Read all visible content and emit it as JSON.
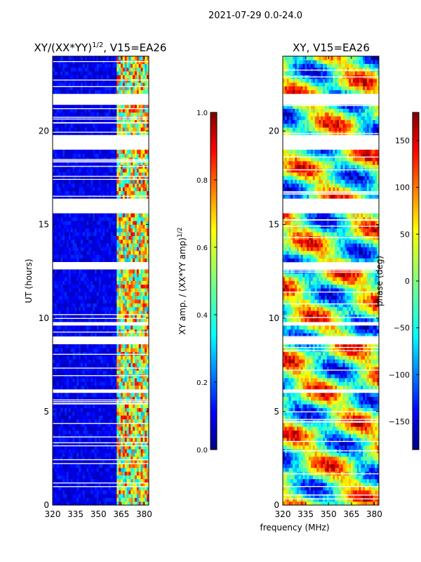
{
  "figure": {
    "suptitle": "2021-07-29 0.0-24.0",
    "xlabel": "frequency (MHz)"
  },
  "chart_data": [
    {
      "type": "heatmap",
      "title_prefix": "XY/(XX*YY)",
      "title_sup": "1/2",
      "title_suffix": ", V15=EA26",
      "xlabel": "frequency (MHz)",
      "ylabel": "UT (hours)",
      "xlim": [
        320,
        383
      ],
      "ylim": [
        0,
        24
      ],
      "xticks": [
        320,
        335,
        350,
        365,
        380
      ],
      "yticks": [
        0,
        5,
        10,
        15,
        20
      ],
      "colorbar": {
        "label_prefix": "XY amp. / (XX*YY amp)",
        "label_sup": "1/2",
        "range": [
          0.0,
          1.0
        ],
        "ticks": [
          "0.0",
          "0.2",
          "0.4",
          "0.6",
          "0.8",
          "1.0"
        ],
        "tick_values": [
          0.0,
          0.2,
          0.4,
          0.6,
          0.8,
          1.0
        ],
        "colormap": "jet"
      },
      "flagged_time_ranges_hours": [
        [
          21.3,
          22.0
        ],
        [
          19.0,
          19.8
        ],
        [
          15.6,
          16.3
        ],
        [
          12.6,
          12.9
        ],
        [
          9.6,
          9.7
        ],
        [
          8.6,
          8.9
        ],
        [
          5.9,
          6.1
        ]
      ],
      "description": "mostly low values (~0.1) below 362 MHz, high values 0.4-0.9 in 362-382 MHz band"
    },
    {
      "type": "heatmap",
      "title": "XY, V15=EA26",
      "xlabel": "frequency (MHz)",
      "ylabel": "",
      "xlim": [
        320,
        383
      ],
      "ylim": [
        0,
        24
      ],
      "xticks": [
        320,
        335,
        350,
        365,
        380
      ],
      "yticks": [
        0,
        5,
        10,
        15,
        20
      ],
      "colorbar": {
        "label": "phase (deg)",
        "range": [
          -180,
          180
        ],
        "ticks": [
          "150",
          "100",
          "50",
          "0",
          "−50",
          "−100",
          "−150"
        ],
        "tick_values": [
          150,
          100,
          50,
          0,
          -50,
          -100,
          -150
        ],
        "colormap": "jet"
      },
      "flagged_time_ranges_hours": [
        [
          21.3,
          22.0
        ],
        [
          19.0,
          19.8
        ],
        [
          15.6,
          16.3
        ],
        [
          12.6,
          12.9
        ],
        [
          9.6,
          9.7
        ],
        [
          8.6,
          8.9
        ],
        [
          5.9,
          6.1
        ]
      ],
      "description": "phase varies across full range with diagonal stripes"
    }
  ]
}
